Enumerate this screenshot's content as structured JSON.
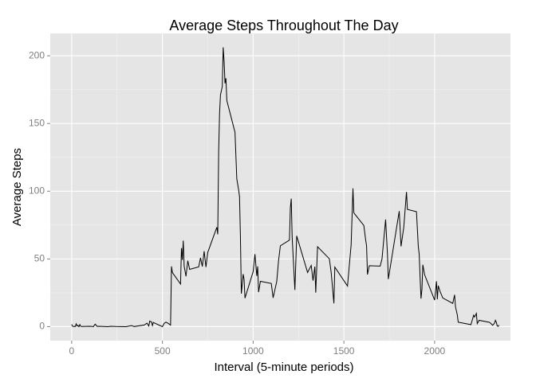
{
  "chart_data": {
    "type": "line",
    "title": "Average Steps Throughout The Day",
    "x_label": "Interval (5-minute periods)",
    "y_label": "Average Steps",
    "x": [
      0,
      5,
      10,
      15,
      20,
      25,
      30,
      35,
      40,
      45,
      50,
      55,
      100,
      110,
      120,
      125,
      130,
      140,
      150,
      200,
      215,
      230,
      245,
      300,
      315,
      330,
      345,
      400,
      415,
      425,
      430,
      440,
      445,
      450,
      500,
      510,
      520,
      530,
      545,
      550,
      555,
      600,
      605,
      610,
      615,
      620,
      630,
      640,
      650,
      700,
      710,
      720,
      730,
      740,
      750,
      800,
      805,
      810,
      815,
      820,
      830,
      835,
      840,
      845,
      850,
      855,
      900,
      910,
      920,
      925,
      930,
      935,
      945,
      950,
      955,
      1000,
      1010,
      1020,
      1025,
      1030,
      1040,
      1100,
      1110,
      1130,
      1140,
      1150,
      1200,
      1205,
      1210,
      1215,
      1230,
      1240,
      1300,
      1320,
      1330,
      1340,
      1345,
      1355,
      1420,
      1430,
      1445,
      1450,
      1520,
      1540,
      1550,
      1555,
      1610,
      1620,
      1625,
      1630,
      1640,
      1700,
      1710,
      1730,
      1740,
      1745,
      1805,
      1815,
      1830,
      1845,
      1850,
      1900,
      1910,
      1915,
      1920,
      1925,
      1930,
      1935,
      1945,
      2000,
      2010,
      2015,
      2020,
      2030,
      2045,
      2100,
      2110,
      2115,
      2125,
      2130,
      2200,
      2205,
      2215,
      2220,
      2230,
      2235,
      2245,
      2300,
      2305,
      2320,
      2330,
      2335,
      2340,
      2345,
      2350,
      2355
    ],
    "series": [
      {
        "name": "Average Steps",
        "color": "#000000",
        "values": [
          1.7,
          0.3,
          0.1,
          0.2,
          0.1,
          2.1,
          0.5,
          0.9,
          0,
          1.5,
          0.3,
          0.1,
          0.3,
          0.2,
          0,
          1.1,
          1.8,
          0.2,
          0.3,
          0,
          0.3,
          0.2,
          0.1,
          0,
          0.4,
          0.8,
          0.1,
          1.2,
          2.6,
          0.5,
          4.1,
          3.5,
          0.8,
          3.1,
          0,
          2.5,
          3.3,
          2.6,
          1.2,
          44.5,
          40,
          31.5,
          58,
          49.3,
          63.5,
          44.6,
          37.2,
          48.7,
          42.3,
          44.1,
          50.8,
          44.4,
          55.7,
          44,
          54.9,
          73.4,
          68.2,
          129.4,
          157.5,
          171.2,
          177.3,
          206.2,
          195.9,
          179.6,
          183.4,
          167,
          143.5,
          109.1,
          101,
          96,
          66,
          24.4,
          38.8,
          35,
          21.1,
          40.6,
          53.5,
          37.5,
          44.5,
          25.5,
          33.5,
          31.9,
          21.3,
          33.3,
          48.7,
          59.7,
          63.9,
          87.6,
          94.5,
          66,
          27.1,
          67,
          40,
          45.2,
          34,
          44.3,
          25.1,
          59,
          50.1,
          40,
          17.2,
          44,
          30,
          60.5,
          102.1,
          84,
          74.7,
          64,
          59.8,
          38.5,
          45,
          44.7,
          50,
          79.1,
          53.8,
          35.1,
          85.3,
          59.3,
          73.4,
          99.5,
          86.6,
          84.9,
          59.3,
          53.5,
          36.3,
          20.7,
          27.4,
          45.7,
          38.3,
          19.6,
          33.5,
          20.2,
          30.2,
          26,
          21.2,
          17.2,
          23.5,
          14.7,
          8.7,
          3.3,
          1.5,
          3.7,
          8.5,
          7.1,
          9.8,
          2.3,
          4.7,
          3.3,
          3,
          1,
          2.6,
          4.7,
          3.3,
          0.6,
          0.2,
          1.1
        ]
      }
    ],
    "xlim": [
      -118,
      2418
    ],
    "ylim": [
      -10.3,
      216.5
    ],
    "xticks": [
      0,
      500,
      1000,
      1500,
      2000
    ],
    "yticks": [
      0,
      50,
      100,
      150,
      200
    ],
    "grid": true
  }
}
